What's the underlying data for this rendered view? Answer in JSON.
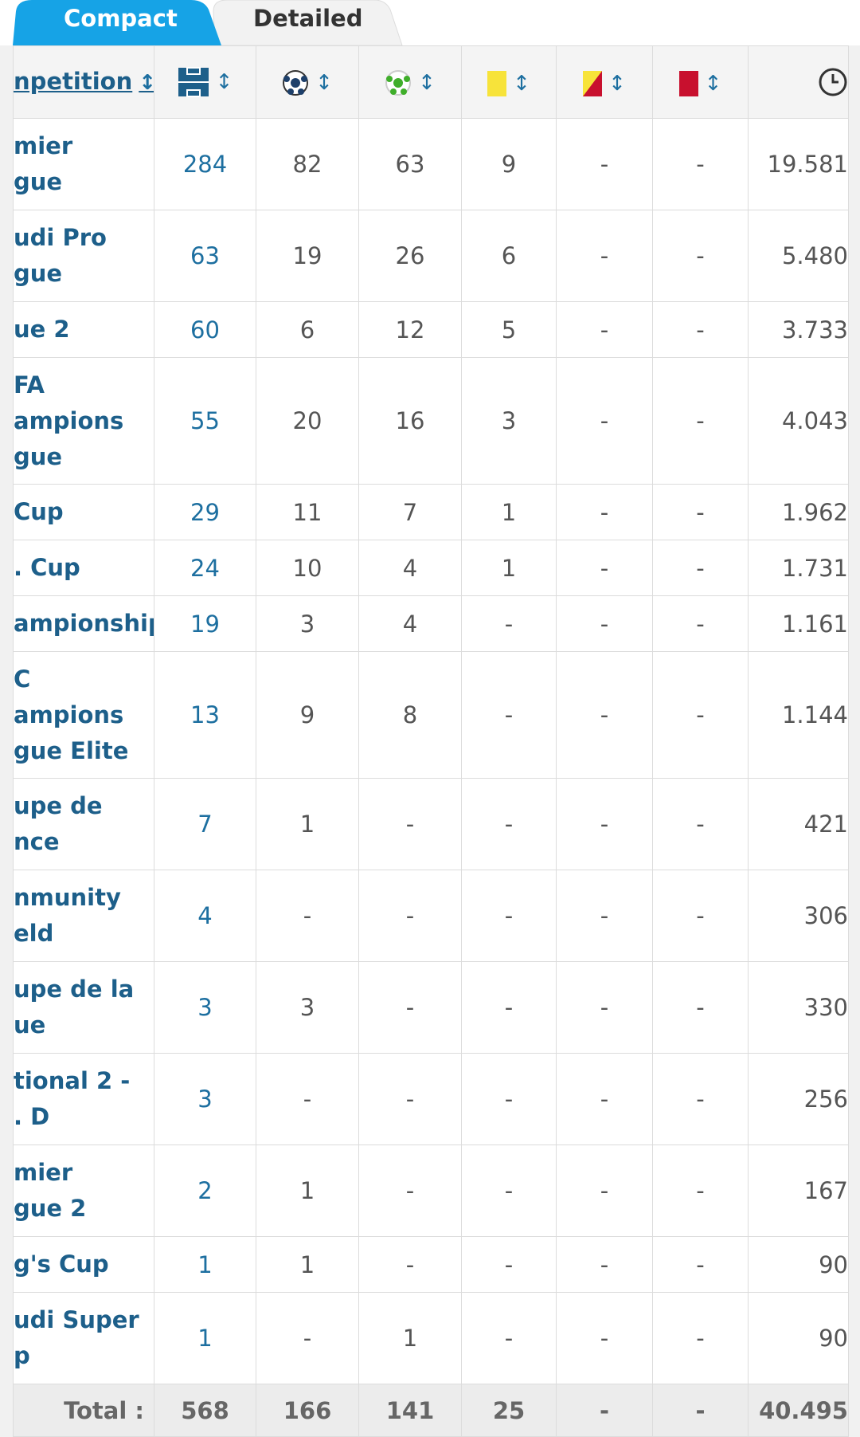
{
  "tabs": [
    "Compact",
    "Detailed"
  ],
  "table": {
    "header": "npetition",
    "rows": [
      [
        "mier\ngue",
        "284",
        "82",
        "63",
        "9",
        "-",
        "-",
        "19.581"
      ],
      [
        "udi Pro\ngue",
        "63",
        "19",
        "26",
        "6",
        "-",
        "-",
        "5.480"
      ],
      [
        "ue 2",
        "60",
        "6",
        "12",
        "5",
        "-",
        "-",
        "3.733"
      ],
      [
        "FA\nampions\ngue",
        "55",
        "20",
        "16",
        "3",
        "-",
        "-",
        "4.043"
      ],
      [
        "Cup",
        "29",
        "11",
        "7",
        "1",
        "-",
        "-",
        "1.962"
      ],
      [
        ". Cup",
        "24",
        "10",
        "4",
        "1",
        "-",
        "-",
        "1.731"
      ],
      [
        "ampionship",
        "19",
        "3",
        "4",
        "-",
        "-",
        "-",
        "1.161"
      ],
      [
        "C\nampions\ngue Elite",
        "13",
        "9",
        "8",
        "-",
        "-",
        "-",
        "1.144"
      ],
      [
        "upe de\nnce",
        "7",
        "1",
        "-",
        "-",
        "-",
        "-",
        "421"
      ],
      [
        "nmunity\neld",
        "4",
        "-",
        "-",
        "-",
        "-",
        "-",
        "306"
      ],
      [
        "upe de la\nue",
        "3",
        "3",
        "-",
        "-",
        "-",
        "-",
        "330"
      ],
      [
        "tional 2 -\n. D",
        "3",
        "-",
        "-",
        "-",
        "-",
        "-",
        "256"
      ],
      [
        "mier\ngue 2",
        "2",
        "1",
        "-",
        "-",
        "-",
        "-",
        "167"
      ],
      [
        "g's Cup",
        "1",
        "1",
        "-",
        "-",
        "-",
        "-",
        "90"
      ],
      [
        "udi Super\np",
        "1",
        "-",
        "1",
        "-",
        "-",
        "-",
        "90"
      ]
    ],
    "total": [
      "Total :",
      "568",
      "166",
      "141",
      "25",
      "-",
      "-",
      "40.495"
    ]
  }
}
